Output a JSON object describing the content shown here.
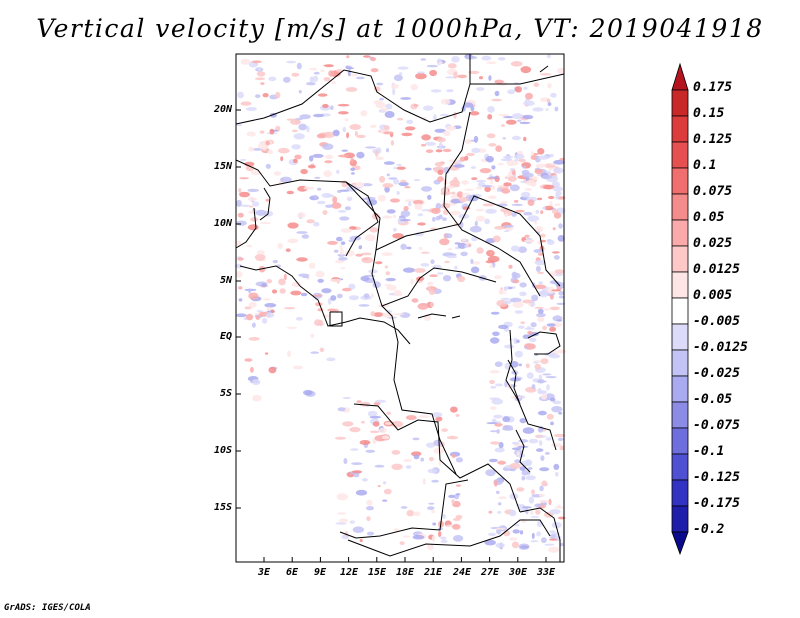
{
  "title": "Vertical velocity [m/s] at 1000hPa, VT: 2019041918",
  "credit": "GrADS: IGES/COLA",
  "map": {
    "variable": "Vertical velocity",
    "units": "m/s",
    "level": "1000hPa",
    "valid_time": "2019041918",
    "lat_ticks": [
      "20N",
      "15N",
      "10N",
      "5N",
      "EQ",
      "5S",
      "10S",
      "15S"
    ],
    "lon_ticks": [
      "3E",
      "6E",
      "9E",
      "12E",
      "15E",
      "18E",
      "21E",
      "24E",
      "27E",
      "30E",
      "33E"
    ]
  },
  "colorbar": {
    "levels": [
      "0.175",
      "0.15",
      "0.125",
      "0.1",
      "0.075",
      "0.05",
      "0.025",
      "0.0125",
      "0.005",
      "-0.005",
      "-0.0125",
      "-0.025",
      "-0.05",
      "-0.075",
      "-0.1",
      "-0.125",
      "-0.175",
      "-0.2"
    ],
    "colors": [
      "#b4141e",
      "#c82828",
      "#dc3c3c",
      "#e65050",
      "#f06e6e",
      "#f58c8c",
      "#faaaaa",
      "#fcc8c8",
      "#fee6e6",
      "#ffffff",
      "#dcdcfa",
      "#c3c3f5",
      "#aaaaf0",
      "#8c8ce6",
      "#6e6edc",
      "#5050d2",
      "#3232c3",
      "#1e1eaa",
      "#0a0a8c"
    ]
  }
}
